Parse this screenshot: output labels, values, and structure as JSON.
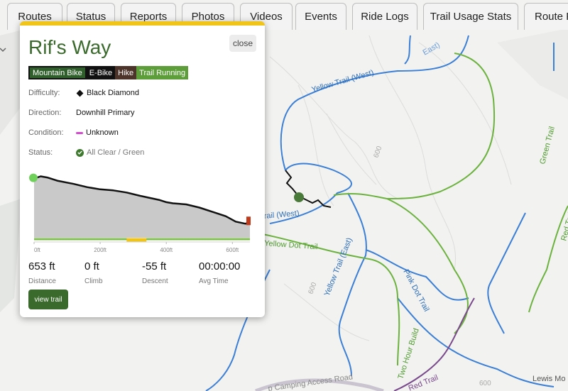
{
  "tabs": [
    "Routes",
    "Status",
    "Reports",
    "Photos",
    "Videos",
    "Events",
    "Ride Logs",
    "Trail Usage Stats",
    "Route P"
  ],
  "popup": {
    "title": "Rif's Way",
    "close_label": "close",
    "activities": [
      "Mountain Bike",
      "E-Bike",
      "Hike",
      "Trail Running"
    ],
    "difficulty_label": "Difficulty:",
    "difficulty_value": "Black Diamond",
    "direction_label": "Direction:",
    "direction_value": "Downhill Primary",
    "condition_label": "Condition:",
    "condition_value": "Unknown",
    "status_label": "Status:",
    "status_value": "All Clear / Green",
    "stats": [
      {
        "value": "653 ft",
        "label": "Distance"
      },
      {
        "value": "0 ft",
        "label": "Climb"
      },
      {
        "value": "-55 ft",
        "label": "Descent"
      },
      {
        "value": "00:00:00",
        "label": "Avg Time"
      }
    ],
    "view_label": "view trail"
  },
  "chart_data": {
    "type": "area",
    "x_ticks": [
      "0ft",
      "200ft",
      "400ft",
      "600ft"
    ],
    "xlim": [
      0,
      653
    ],
    "ylim": [
      0,
      60
    ],
    "x": [
      0,
      20,
      40,
      70,
      120,
      160,
      200,
      240,
      280,
      320,
      350,
      380,
      400,
      420,
      460,
      500,
      540,
      580,
      610,
      640,
      653
    ],
    "y": [
      55,
      57,
      56,
      53,
      50,
      47,
      45,
      44,
      42,
      39,
      37,
      35,
      33,
      32,
      31,
      28,
      24,
      20,
      15,
      13,
      15
    ]
  },
  "map_labels": {
    "yellow_west": "Yellow Trail (West)",
    "yellow_west2": "rail (West)",
    "yellow_east": "Yellow Trail (East)",
    "east_top": "East)",
    "yellow_dot": "Yellow Dot Trail",
    "green": "Green Trail",
    "pink_dot": "Pink Dot Trail",
    "two_hour": "Two Hour Build",
    "red": "Red Trail",
    "red_right": "Red Trai",
    "camping": "p Camping Access Road",
    "lewis": "Lewis Mo",
    "c600a": "600",
    "c600b": "600",
    "c600c": "600"
  },
  "colors": {
    "yellow_trails": "#3b7fd6",
    "green_trails": "#6cb23e",
    "red_trail": "#7a4a8c",
    "accent": "#3b6a2d",
    "popup_top": "#f0c419"
  }
}
